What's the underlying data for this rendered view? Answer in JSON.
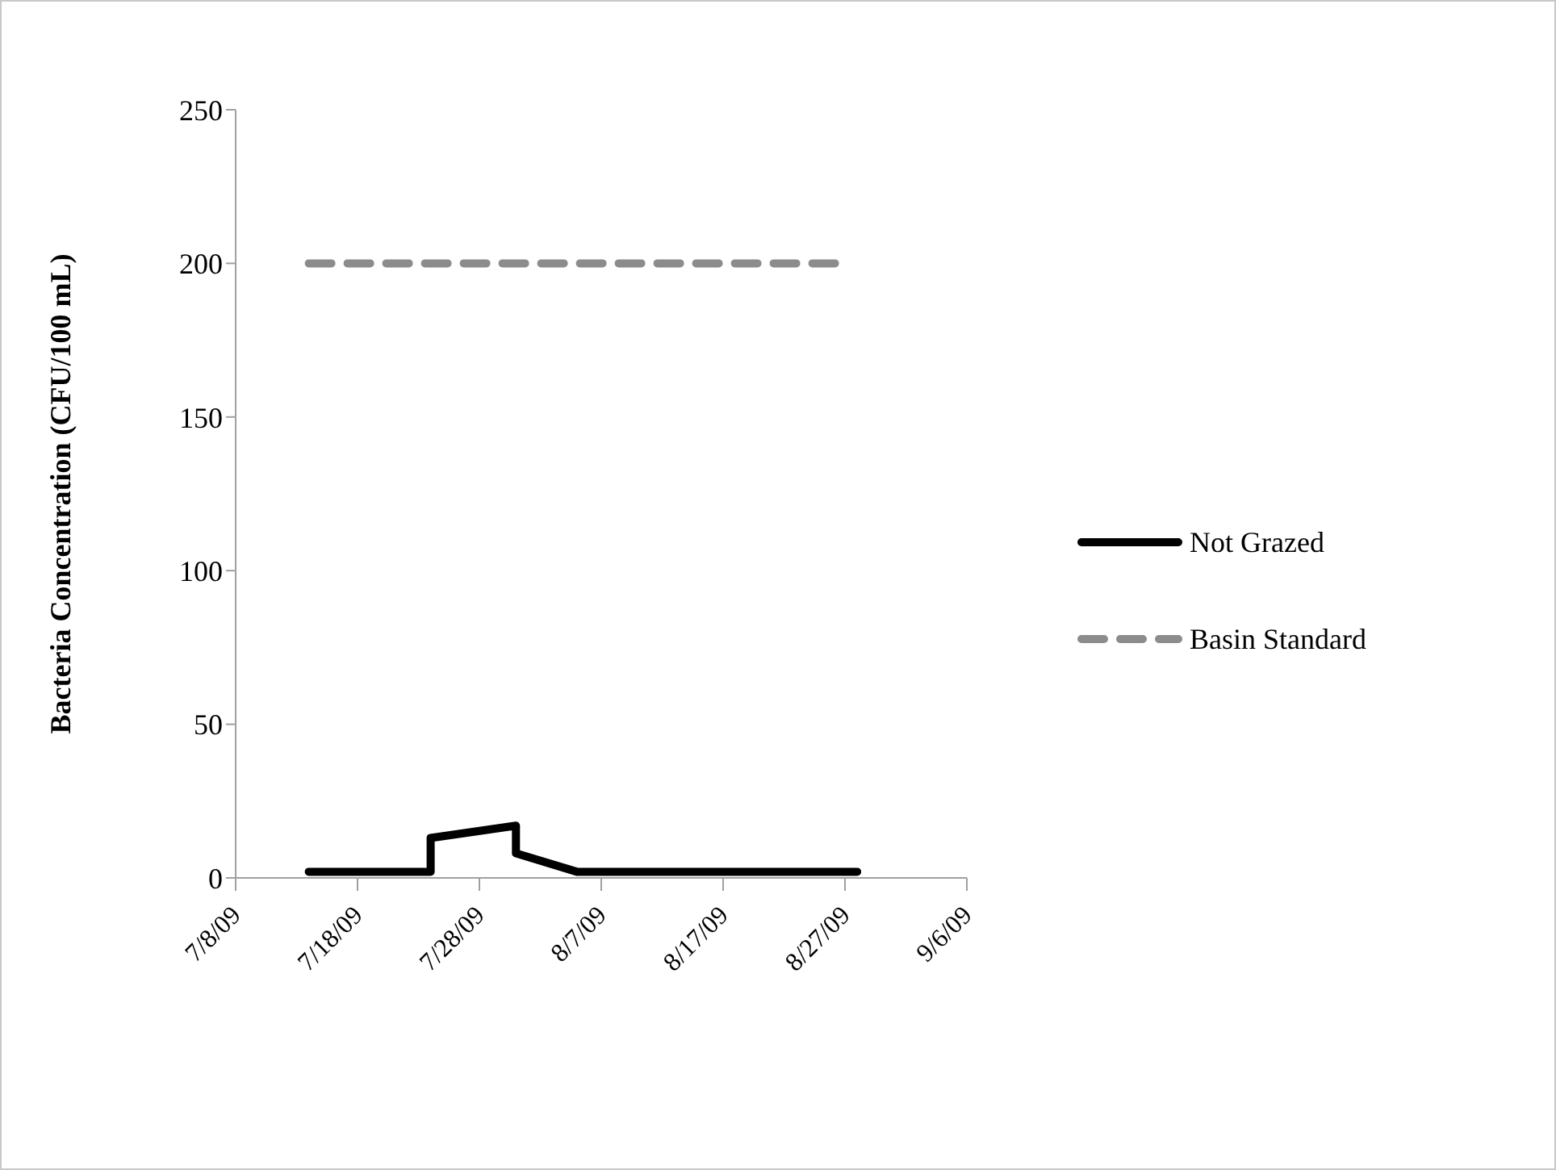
{
  "chart_data": {
    "type": "line",
    "ylabel": "Bacteria Concentration (CFU/100 mL)",
    "xlim": [
      "--07-08",
      "--09-06"
    ],
    "xticks": [
      {
        "value": "--07-08",
        "label": "7/8/09"
      },
      {
        "value": "--07-18",
        "label": "7/18/09"
      },
      {
        "value": "--07-28",
        "label": "7/28/09"
      },
      {
        "value": "--08-07",
        "label": "8/7/09"
      },
      {
        "value": "--08-17",
        "label": "8/17/09"
      },
      {
        "value": "--08-27",
        "label": "8/27/09"
      },
      {
        "value": "--09-06",
        "label": "9/6/09"
      }
    ],
    "ylim": [
      0,
      250
    ],
    "yticks": [
      0,
      50,
      100,
      150,
      200,
      250
    ],
    "grid": false,
    "legend": "right",
    "marker": "none",
    "series": [
      {
        "name": "Not Grazed",
        "color": "#000000",
        "line_style": "solid",
        "x": [
          "--07-14",
          "--07-24",
          "--07-24",
          "--07-31",
          "--07-31",
          "--08-05",
          "--08-28"
        ],
        "values": [
          2,
          2,
          13,
          17,
          8,
          2,
          2
        ]
      },
      {
        "name": "Basin Standard",
        "color": "#8c8c8c",
        "line_style": "dashed",
        "x": [
          "--07-14",
          "--08-27"
        ],
        "values": [
          200,
          200
        ]
      }
    ]
  }
}
